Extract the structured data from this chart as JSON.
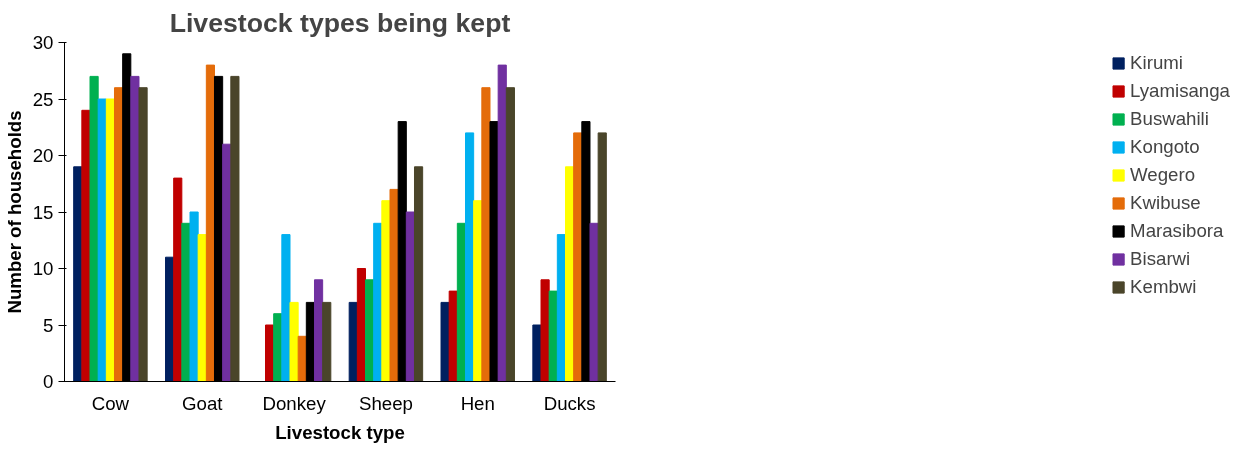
{
  "chart_data": {
    "type": "bar",
    "title": "Livestock types being kept",
    "xlabel": "Livestock type",
    "ylabel": "Number of households",
    "categories": [
      "Cow",
      "Goat",
      "Donkey",
      "Sheep",
      "Hen",
      "Ducks"
    ],
    "series": [
      {
        "name": "Kirumi",
        "color": "#002060",
        "values": [
          19,
          11,
          0,
          7,
          7,
          5
        ]
      },
      {
        "name": "Lyamisanga",
        "color": "#c00000",
        "values": [
          24,
          18,
          5,
          10,
          8,
          9
        ]
      },
      {
        "name": "Buswahili",
        "color": "#00b050",
        "values": [
          27,
          14,
          6,
          9,
          14,
          8
        ]
      },
      {
        "name": "Kongoto",
        "color": "#00b0f0",
        "values": [
          25,
          15,
          13,
          14,
          22,
          13
        ]
      },
      {
        "name": "Wegero",
        "color": "#ffff00",
        "values": [
          25,
          13,
          7,
          16,
          16,
          19
        ]
      },
      {
        "name": "Kwibuse",
        "color": "#e46c0a",
        "values": [
          26,
          28,
          4,
          17,
          26,
          22
        ]
      },
      {
        "name": "Marasibora",
        "color": "#000000",
        "values": [
          29,
          27,
          7,
          23,
          23,
          23
        ]
      },
      {
        "name": "Bisarwi",
        "color": "#7030a0",
        "values": [
          27,
          21,
          9,
          15,
          28,
          14
        ]
      },
      {
        "name": "Kembwi",
        "color": "#4a452a",
        "values": [
          26,
          27,
          7,
          19,
          26,
          22
        ]
      }
    ],
    "ylim": [
      0,
      30
    ],
    "yticks": [
      0,
      5,
      10,
      15,
      20,
      25,
      30
    ],
    "grid": false,
    "legend": "right"
  }
}
